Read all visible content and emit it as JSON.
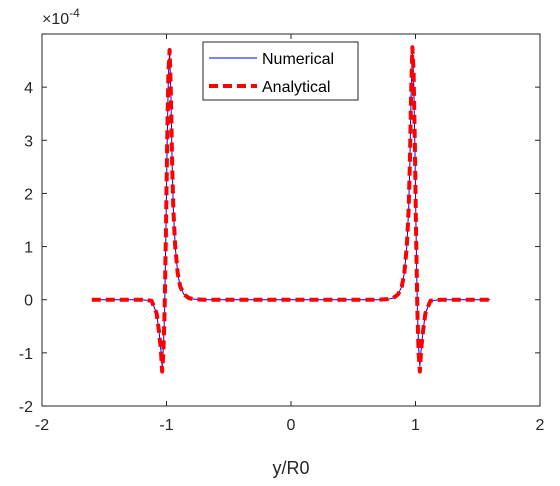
{
  "chart_data": {
    "type": "line",
    "xlabel": "y/R0",
    "ylabel": "",
    "xlim": [
      -2,
      2
    ],
    "ylim": [
      -2,
      5
    ],
    "xticks": [
      "-2",
      "-1",
      "0",
      "1",
      "2"
    ],
    "yticks": [
      "-2",
      "-1",
      "0",
      "1",
      "2",
      "3",
      "4"
    ],
    "y_exponent_base": "×10",
    "y_exponent_power": "-4",
    "grid": false,
    "legend_position": "top-center",
    "series": [
      {
        "name": "Numerical",
        "color": "#0000ff",
        "style": "solid",
        "x": [
          -1.6,
          -1.2,
          -1.12,
          -1.08,
          -1.06,
          -1.045,
          -1.035,
          -1.025,
          -1.015,
          -1.005,
          -0.995,
          -0.985,
          -0.975,
          -0.965,
          -0.955,
          -0.945,
          -0.93,
          -0.91,
          -0.89,
          -0.86,
          -0.82,
          -0.78,
          -0.7,
          0.0,
          0.7,
          0.78,
          0.82,
          0.86,
          0.89,
          0.91,
          0.93,
          0.945,
          0.955,
          0.965,
          0.975,
          0.985,
          0.995,
          1.005,
          1.015,
          1.025,
          1.035,
          1.045,
          1.06,
          1.08,
          1.12,
          1.2,
          1.6
        ],
        "y": [
          0,
          0,
          -0.02,
          -0.25,
          -0.6,
          -0.95,
          -1.25,
          -0.9,
          -0.2,
          1.2,
          2.9,
          4.2,
          4.65,
          3.9,
          2.6,
          1.7,
          1.0,
          0.5,
          0.25,
          0.1,
          0.03,
          0.01,
          0,
          0,
          0,
          0.01,
          0.03,
          0.1,
          0.25,
          0.5,
          1.0,
          1.7,
          2.6,
          3.9,
          4.65,
          4.2,
          2.9,
          1.2,
          -0.2,
          -0.9,
          -1.25,
          -0.95,
          -0.6,
          -0.25,
          -0.02,
          0,
          0
        ]
      },
      {
        "name": "Analytical",
        "color": "#ff0000",
        "style": "dashed",
        "x": [
          -1.6,
          -1.2,
          -1.12,
          -1.08,
          -1.06,
          -1.045,
          -1.035,
          -1.025,
          -1.015,
          -1.005,
          -0.995,
          -0.985,
          -0.975,
          -0.965,
          -0.955,
          -0.945,
          -0.93,
          -0.91,
          -0.89,
          -0.86,
          -0.82,
          -0.78,
          -0.7,
          0.0,
          0.7,
          0.78,
          0.82,
          0.86,
          0.89,
          0.91,
          0.93,
          0.945,
          0.955,
          0.965,
          0.975,
          0.985,
          0.995,
          1.005,
          1.015,
          1.025,
          1.035,
          1.045,
          1.06,
          1.08,
          1.12,
          1.2,
          1.6
        ],
        "y": [
          0,
          0,
          -0.02,
          -0.25,
          -0.6,
          -0.95,
          -1.35,
          -1.0,
          -0.2,
          1.2,
          2.9,
          4.25,
          4.7,
          3.9,
          2.6,
          1.7,
          1.0,
          0.5,
          0.25,
          0.1,
          0.03,
          0.01,
          0,
          0,
          0,
          0.01,
          0.03,
          0.1,
          0.25,
          0.5,
          1.0,
          1.7,
          2.6,
          3.9,
          4.75,
          4.25,
          2.9,
          1.2,
          -0.2,
          -1.0,
          -1.35,
          -0.95,
          -0.6,
          -0.25,
          -0.02,
          0,
          0
        ]
      }
    ]
  }
}
